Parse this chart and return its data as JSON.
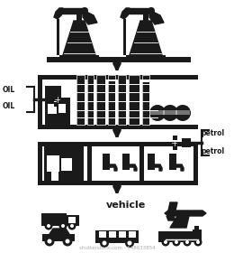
{
  "bg_color": "#ffffff",
  "fg_color": "#1a1a1a",
  "gray_color": "#888888",
  "title_text": "vehicle",
  "oil_label": "OIL",
  "petrol_label": "petrol",
  "watermark": "shutterstock.com · 548633854",
  "fig_width": 2.6,
  "fig_height": 2.8,
  "dpi": 100
}
